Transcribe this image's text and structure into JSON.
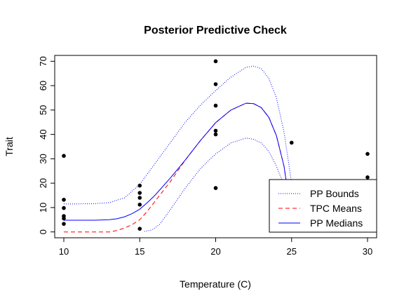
{
  "chart_data": {
    "type": "line",
    "title": "Posterior Predictive Check",
    "xlabel": "Temperature (C)",
    "ylabel": "Trait",
    "xlim": [
      9.4,
      30.6
    ],
    "ylim": [
      -2.4,
      72.4
    ],
    "xticks": [
      "10",
      "15",
      "20",
      "25",
      "30"
    ],
    "yticks": [
      "0",
      "10",
      "20",
      "30",
      "40",
      "50",
      "60",
      "70"
    ],
    "grid": false,
    "legend_position": "bottom-right",
    "points": [
      {
        "x": 10,
        "y": 31.2
      },
      {
        "x": 10,
        "y": 13.2
      },
      {
        "x": 10,
        "y": 9.8
      },
      {
        "x": 10,
        "y": 6.5
      },
      {
        "x": 10,
        "y": 5.5
      },
      {
        "x": 10,
        "y": 3.3
      },
      {
        "x": 15,
        "y": 19.0
      },
      {
        "x": 15,
        "y": 16.0
      },
      {
        "x": 15,
        "y": 14.0
      },
      {
        "x": 15,
        "y": 11.2
      },
      {
        "x": 15,
        "y": 1.3
      },
      {
        "x": 20,
        "y": 70.0
      },
      {
        "x": 20,
        "y": 60.6
      },
      {
        "x": 20,
        "y": 51.8
      },
      {
        "x": 20,
        "y": 41.5
      },
      {
        "x": 20,
        "y": 40.0
      },
      {
        "x": 20,
        "y": 18.0
      },
      {
        "x": 25,
        "y": 36.6
      },
      {
        "x": 30,
        "y": 32.0
      },
      {
        "x": 30,
        "y": 22.4
      },
      {
        "x": 30,
        "y": 21.0
      }
    ],
    "series": [
      {
        "name": "PP Bounds",
        "color": "#0000ff",
        "dash": "dotted",
        "curves": [
          {
            "x": [
              10,
              11,
              12,
              13,
              14,
              15,
              16,
              17,
              18,
              19,
              20,
              21,
              22,
              22.5,
              23,
              23.5,
              24,
              24.5,
              25
            ],
            "y": [
              11.5,
              11.5,
              11.6,
              12.0,
              14.0,
              19.5,
              28.0,
              36.5,
              45.0,
              52.0,
              58.0,
              63.5,
              67.5,
              68.0,
              67.0,
              63.0,
              55.0,
              41.0,
              20.0
            ]
          },
          {
            "x": [
              15.3,
              15.8,
              16.3,
              17,
              18,
              19,
              20,
              21,
              22,
              22.5,
              23,
              23.5,
              24,
              24.5,
              25
            ],
            "y": [
              0.2,
              0.8,
              3.0,
              9.0,
              18.0,
              26.0,
              32.0,
              36.5,
              38.5,
              38.0,
              36.5,
              33.0,
              27.0,
              19.0,
              10.0
            ]
          }
        ]
      },
      {
        "name": "TPC Means",
        "color": "#ff0000",
        "dash": "dashed",
        "curves": [
          {
            "x": [
              10,
              11,
              12,
              13,
              13.5,
              14,
              14.5,
              15,
              15.5,
              16,
              17,
              18,
              19,
              20,
              21,
              22,
              22.5,
              23,
              23.5,
              24,
              24.5,
              25
            ],
            "y": [
              0.0,
              0.0,
              0.0,
              0.0,
              0.6,
              1.6,
              3.0,
              5.0,
              8.5,
              12.5,
              20.5,
              29.5,
              37.5,
              44.8,
              50.0,
              52.8,
              52.6,
              51.0,
              47.0,
              39.5,
              27.0,
              6.0
            ]
          }
        ]
      },
      {
        "name": "PP Medians",
        "color": "#0000ff",
        "dash": "solid",
        "curves": [
          {
            "x": [
              10,
              11,
              12,
              13,
              13.5,
              14,
              14.5,
              15,
              15.5,
              16,
              17,
              18,
              19,
              20,
              21,
              22,
              22.5,
              23,
              23.5,
              24,
              24.5,
              25
            ],
            "y": [
              4.8,
              4.8,
              4.8,
              5.0,
              5.4,
              6.2,
              7.5,
              9.3,
              12.0,
              15.0,
              22.0,
              29.5,
              37.5,
              44.8,
              50.0,
              52.8,
              52.6,
              51.0,
              47.0,
              39.5,
              27.0,
              6.0
            ]
          }
        ]
      }
    ]
  }
}
